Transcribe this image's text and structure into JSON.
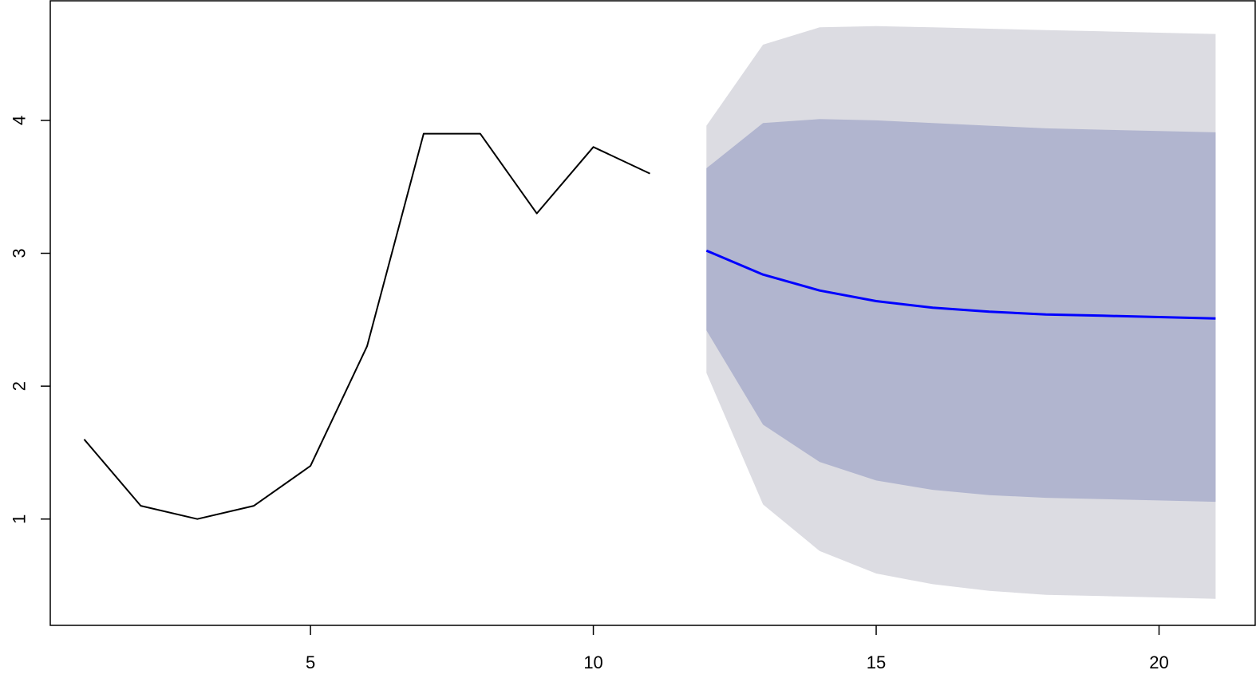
{
  "chart_data": {
    "type": "line",
    "title": "",
    "xlabel": "",
    "ylabel": "",
    "xlim": [
      0.4,
      21.7
    ],
    "ylim": [
      0.2,
      4.9
    ],
    "x_ticks": [
      5,
      10,
      15,
      20
    ],
    "y_ticks": [
      1,
      2,
      3,
      4
    ],
    "grid": false,
    "legend": "none",
    "series": [
      {
        "role": "observed",
        "color": "#000000",
        "x": [
          1,
          2,
          3,
          4,
          5,
          6,
          7,
          8,
          9,
          10,
          11
        ],
        "y": [
          1.6,
          1.1,
          1.0,
          1.1,
          1.4,
          2.3,
          3.9,
          3.9,
          3.3,
          3.8,
          3.6
        ]
      },
      {
        "role": "forecast",
        "color": "#0000ff",
        "x": [
          12,
          13,
          14,
          15,
          16,
          17,
          18,
          19,
          20,
          21
        ],
        "y": [
          3.02,
          2.84,
          2.72,
          2.64,
          2.59,
          2.56,
          2.54,
          2.53,
          2.52,
          2.51
        ]
      }
    ],
    "bands": [
      {
        "role": "outer-interval",
        "color": "#dcdce2",
        "x": [
          12,
          13,
          14,
          15,
          16,
          17,
          18,
          19,
          20,
          21
        ],
        "lower": [
          2.1,
          1.11,
          0.76,
          0.59,
          0.51,
          0.46,
          0.43,
          0.42,
          0.41,
          0.4
        ],
        "upper": [
          3.96,
          4.57,
          4.7,
          4.71,
          4.7,
          4.69,
          4.68,
          4.67,
          4.66,
          4.65
        ]
      },
      {
        "role": "inner-interval",
        "color": "#b1b5cf",
        "x": [
          12,
          13,
          14,
          15,
          16,
          17,
          18,
          19,
          20,
          21
        ],
        "lower": [
          2.42,
          1.71,
          1.43,
          1.29,
          1.22,
          1.18,
          1.16,
          1.15,
          1.14,
          1.13
        ],
        "upper": [
          3.64,
          3.98,
          4.01,
          4.0,
          3.98,
          3.96,
          3.94,
          3.93,
          3.92,
          3.91
        ]
      }
    ]
  }
}
